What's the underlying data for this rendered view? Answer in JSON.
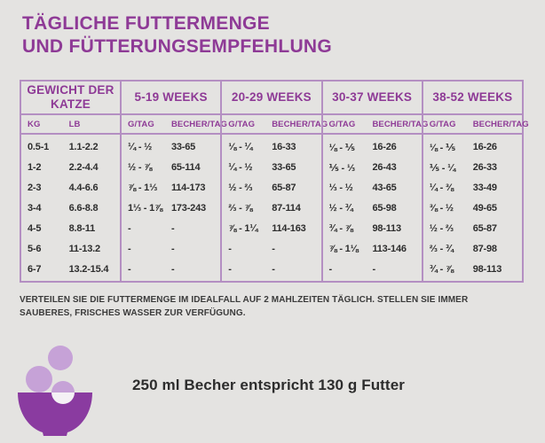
{
  "title": {
    "line1": "TÄGLICHE FUTTERMENGE",
    "line2": "UND FÜTTERUNGSEMPFEHLUNG"
  },
  "table": {
    "group_headers": [
      {
        "label": "GEWICHT DER KATZE",
        "cols": [
          "KG",
          "LB"
        ]
      },
      {
        "label": "5-19 WEEKS",
        "cols": [
          "G/TAG",
          "BECHER/TAG"
        ]
      },
      {
        "label": "20-29 WEEKS",
        "cols": [
          "G/TAG",
          "BECHER/TAG"
        ]
      },
      {
        "label": "30-37 WEEKS",
        "cols": [
          "G/TAG",
          "BECHER/TAG"
        ]
      },
      {
        "label": "38-52 WEEKS",
        "cols": [
          "G/TAG",
          "BECHER/TAG"
        ]
      }
    ],
    "rows": [
      [
        "0.5-1",
        "1.1-2.2",
        "¼ - ½",
        "33-65",
        "⅛ - ¼",
        "16-33",
        "⅛ - ⅕",
        "16-26",
        "⅛ - ⅕",
        "16-26"
      ],
      [
        "1-2",
        "2.2-4.4",
        "½ - ⅞",
        "65-114",
        "¼ - ½",
        "33-65",
        "⅕ - ⅓",
        "26-43",
        "⅕ - ¼",
        "26-33"
      ],
      [
        "2-3",
        "4.4-6.6",
        "⅞ - 1⅓",
        "114-173",
        "½ - ⅔",
        "65-87",
        "⅓ - ½",
        "43-65",
        "¼ - ⅜",
        "33-49"
      ],
      [
        "3-4",
        "6.6-8.8",
        "1⅓ - 1⅞",
        "173-243",
        "⅔ - ⅞",
        "87-114",
        "½ - ¾",
        "65-98",
        "⅜ - ½",
        "49-65"
      ],
      [
        "4-5",
        "8.8-11",
        "-",
        "-",
        "⅞ - 1¼",
        "114-163",
        "¾ - ⅞",
        "98-113",
        "½ - ⅔",
        "65-87"
      ],
      [
        "5-6",
        "11-13.2",
        "-",
        "-",
        "-",
        "-",
        "⅞ - 1⅛",
        "113-146",
        "⅔ - ¾",
        "87-98"
      ],
      [
        "6-7",
        "13.2-15.4",
        "-",
        "-",
        "-",
        "-",
        "-",
        "-",
        "¾ - ⅞",
        "98-113"
      ]
    ]
  },
  "note": {
    "line1": "VERTEILEN SIE DIE FUTTERMENGE IM IDEALFALL AUF 2 MAHLZEITEN TÄGLICH. STELLEN SIE IMMER",
    "line2": "SAUBERES, FRISCHES WASSER ZUR VERFÜGUNG."
  },
  "footer": {
    "cup_info": "250 ml Becher entspricht 130 g Futter"
  },
  "icons": {
    "bowl": "food-bowl-icon",
    "kibble": "kibble-dots-icon"
  },
  "colors": {
    "purple": "#8e3a96",
    "table_line": "#b48fc2",
    "bowl": "#8a3ba0",
    "kibble": "#c6a2d7",
    "background": "#e4e3e1",
    "text": "#2d2d2d"
  }
}
